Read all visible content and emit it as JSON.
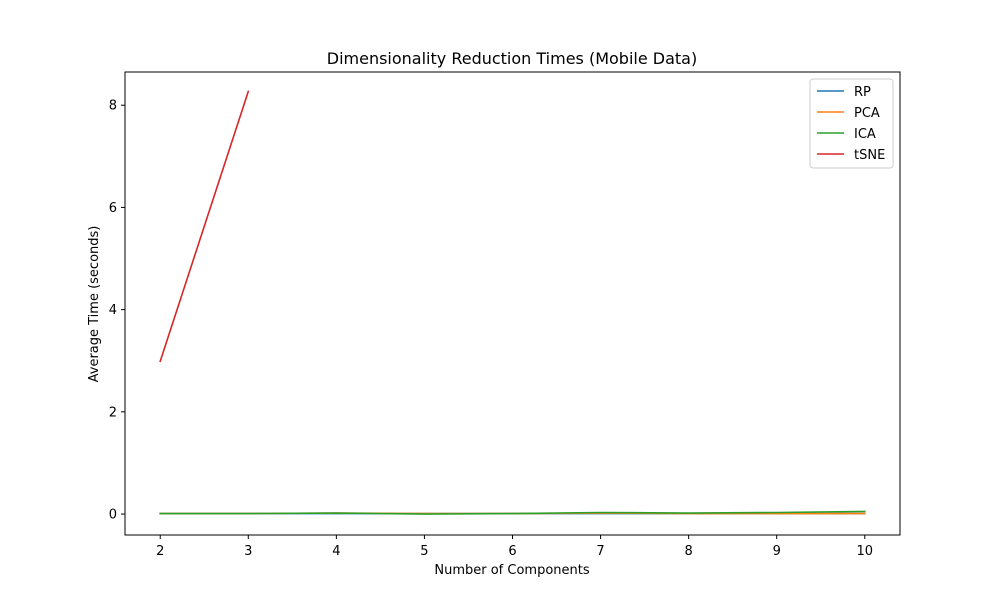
{
  "chart_data": {
    "type": "line",
    "title": "Dimensionality Reduction Times (Mobile Data)",
    "xlabel": "Number of Components",
    "ylabel": "Average Time (seconds)",
    "xlim": [
      1.6,
      10.4
    ],
    "ylim": [
      -0.41,
      8.65
    ],
    "xticks": [
      2,
      3,
      4,
      5,
      6,
      7,
      8,
      9,
      10
    ],
    "yticks": [
      0,
      2,
      4,
      6,
      8
    ],
    "grid": false,
    "legend_position": "top-right",
    "series": [
      {
        "name": "RP",
        "color": "#1f77b4",
        "x": [
          2,
          3,
          4,
          5,
          6,
          7,
          8,
          9,
          10
        ],
        "y": [
          0.01,
          0.01,
          0.01,
          0.01,
          0.01,
          0.01,
          0.01,
          0.01,
          0.01
        ]
      },
      {
        "name": "PCA",
        "color": "#ff7f0e",
        "x": [
          2,
          3,
          4,
          5,
          6,
          7,
          8,
          9,
          10
        ],
        "y": [
          0.01,
          0.01,
          0.02,
          0.01,
          0.01,
          0.02,
          0.01,
          0.01,
          0.01
        ]
      },
      {
        "name": "ICA",
        "color": "#2ca02c",
        "x": [
          2,
          3,
          4,
          5,
          6,
          7,
          8,
          9,
          10
        ],
        "y": [
          0.01,
          0.01,
          0.02,
          0.0,
          0.01,
          0.03,
          0.02,
          0.03,
          0.05
        ]
      },
      {
        "name": "tSNE",
        "color": "#d62728",
        "x": [
          2,
          3
        ],
        "y": [
          2.99,
          8.27
        ]
      }
    ]
  }
}
